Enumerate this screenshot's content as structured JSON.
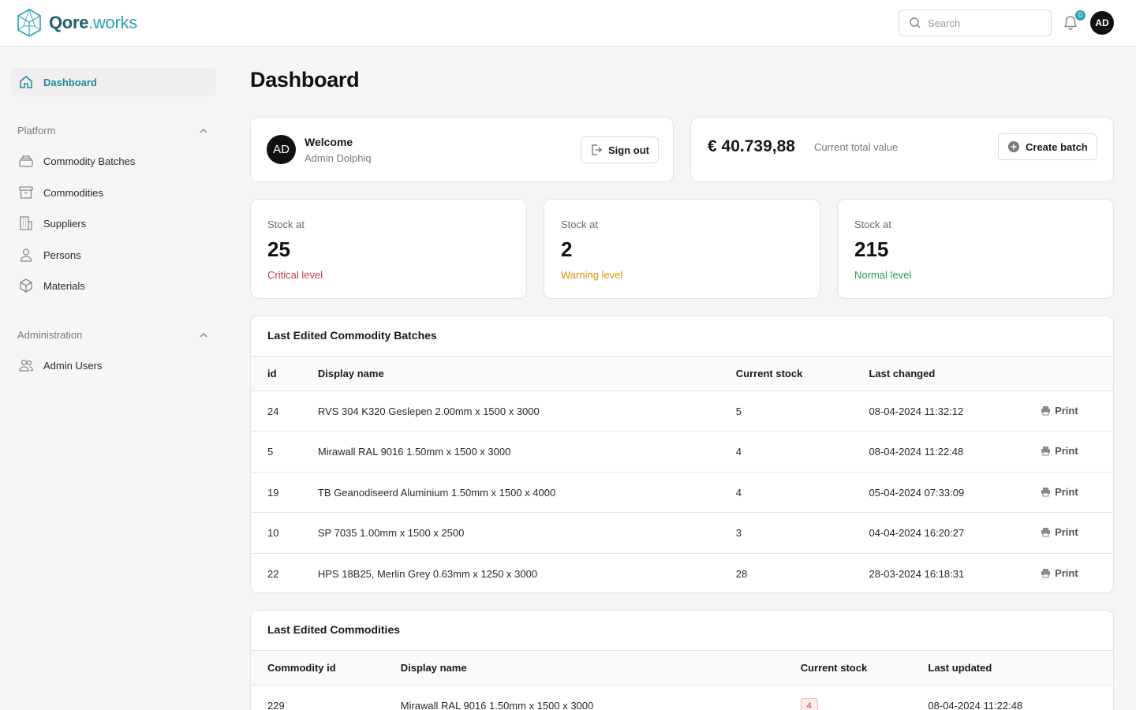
{
  "header": {
    "brand_bold": "Qore",
    "brand_light": ".works",
    "search_placeholder": "Search",
    "notification_count": "0",
    "user_initials": "AD"
  },
  "sidebar": {
    "dashboard_label": "Dashboard",
    "platform_label": "Platform",
    "platform_items": [
      "Commodity Batches",
      "Commodities",
      "Suppliers",
      "Persons",
      "Materials"
    ],
    "administration_label": "Administration",
    "administration_items": [
      "Admin Users"
    ]
  },
  "main": {
    "title": "Dashboard",
    "welcome": {
      "initials": "AD",
      "title": "Welcome",
      "name": "Admin Dolphiq",
      "sign_out_label": "Sign out"
    },
    "total": {
      "value": "€ 40.739,88",
      "label": "Current total value",
      "create_batch_label": "Create batch"
    },
    "stock_cards": [
      {
        "label": "Stock at",
        "value": "25",
        "level": "Critical level",
        "color": "#d23c3c"
      },
      {
        "label": "Stock at",
        "value": "2",
        "level": "Warning level",
        "color": "#e0900f"
      },
      {
        "label": "Stock at",
        "value": "215",
        "level": "Normal level",
        "color": "#2a9d4e"
      }
    ],
    "batches": {
      "title": "Last Edited Commodity Batches",
      "columns": [
        "id",
        "Display name",
        "Current stock",
        "Last changed"
      ],
      "print_label": "Print",
      "rows": [
        {
          "id": "24",
          "name": "RVS 304 K320 Geslepen 2.00mm x 1500 x 3000",
          "stock": "5",
          "changed": "08-04-2024 11:32:12"
        },
        {
          "id": "5",
          "name": "Mirawall RAL 9016 1.50mm x 1500 x 3000",
          "stock": "4",
          "changed": "08-04-2024 11:22:48"
        },
        {
          "id": "19",
          "name": "TB Geanodiseerd Aluminium 1.50mm x 1500 x 4000",
          "stock": "4",
          "changed": "05-04-2024 07:33:09"
        },
        {
          "id": "10",
          "name": "SP 7035 1.00mm x 1500 x 2500",
          "stock": "3",
          "changed": "04-04-2024 16:20:27"
        },
        {
          "id": "22",
          "name": "HPS 18B25, Merlin Grey 0.63mm x 1250 x 3000",
          "stock": "28",
          "changed": "28-03-2024 16:18:31"
        }
      ]
    },
    "commodities": {
      "title": "Last Edited Commodities",
      "columns": [
        "Commodity id",
        "Display name",
        "Current stock",
        "Last updated"
      ],
      "rows": [
        {
          "id": "229",
          "name": "Mirawall RAL 9016 1.50mm x 1500 x 3000",
          "stock": "4",
          "updated": "08-04-2024 11:22:48"
        }
      ]
    }
  },
  "colors": {
    "accent": "#1f8a9a",
    "critical": "#d23c3c",
    "warning": "#e0900f",
    "normal": "#2a9d4e"
  }
}
